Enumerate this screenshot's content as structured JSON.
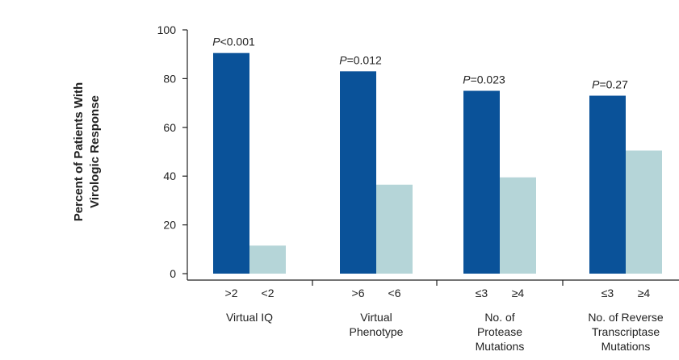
{
  "chart_data": {
    "type": "bar",
    "ylabel": [
      "Percent of Patients With",
      "Virologic Response"
    ],
    "ylim": [
      0,
      100
    ],
    "yticks": [
      0,
      20,
      40,
      60,
      80,
      100
    ],
    "grid": false,
    "colors": {
      "dark": "#0a5299",
      "light": "#b5d5d8",
      "axis": "#222222"
    },
    "groups": [
      {
        "name_lines": [
          "Virtual IQ"
        ],
        "p_prefix": "P",
        "p_suffix": "<0.001",
        "bars": [
          {
            "label": ">2",
            "value": 90.5,
            "shade": "dark"
          },
          {
            "label": "<2",
            "value": 11.5,
            "shade": "light"
          }
        ]
      },
      {
        "name_lines": [
          "Virtual",
          "Phenotype"
        ],
        "p_prefix": "P",
        "p_suffix": "=0.012",
        "bars": [
          {
            "label": ">6",
            "value": 83,
            "shade": "dark"
          },
          {
            "label": "<6",
            "value": 36.5,
            "shade": "light"
          }
        ]
      },
      {
        "name_lines": [
          "No. of",
          "Protease",
          "Mutations"
        ],
        "p_prefix": "P",
        "p_suffix": "=0.023",
        "bars": [
          {
            "label": "≤3",
            "value": 75,
            "shade": "dark"
          },
          {
            "label": "≥4",
            "value": 39.5,
            "shade": "light"
          }
        ]
      },
      {
        "name_lines": [
          "No. of Reverse",
          "Transcriptase",
          "Mutations"
        ],
        "p_prefix": "P",
        "p_suffix": "=0.27",
        "bars": [
          {
            "label": "≤3",
            "value": 73,
            "shade": "dark"
          },
          {
            "label": "≥4",
            "value": 50.5,
            "shade": "light"
          }
        ]
      }
    ]
  }
}
